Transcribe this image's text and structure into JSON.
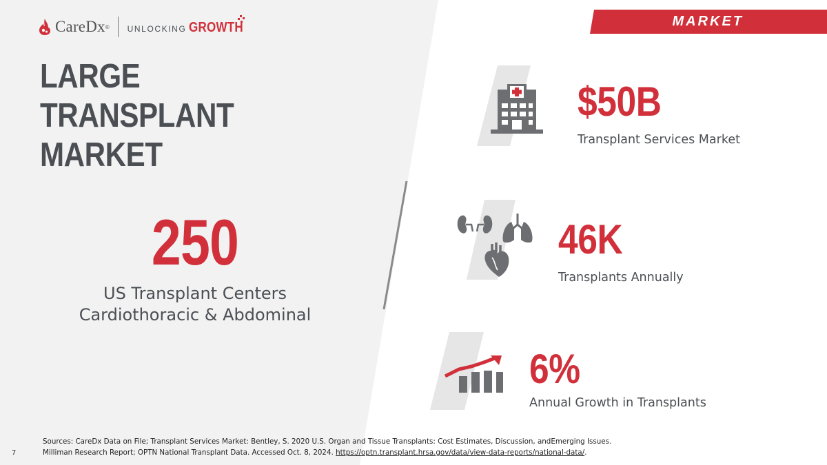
{
  "brand": {
    "logo_text": "CareDx",
    "logo_mark": "®",
    "tagline_prefix": "UNLOCKING",
    "tagline_highlight": "GROWTH"
  },
  "section_label": "MARKET",
  "title_line1": "LARGE TRANSPLANT",
  "title_line2": "MARKET",
  "centers": {
    "value": "250",
    "desc_line1": "US Transplant Centers",
    "desc_line2": "Cardiothoracic & Abdominal"
  },
  "stats": [
    {
      "value": "$50B",
      "label": "Transplant Services Market",
      "icon": "hospital-icon"
    },
    {
      "value": "46K",
      "label": "Transplants Annually",
      "icon": "organs-icon"
    },
    {
      "value": "6%",
      "label": "Annual Growth in Transplants",
      "icon": "growth-chart-icon"
    }
  ],
  "footer": {
    "sources_line1": "Sources: CareDx Data on File; Transplant Services Market: Bentley, S. 2020 U.S. Organ and Tissue Transplants: Cost Estimates, Discussion, andEmerging Issues.",
    "sources_line2_prefix": "Milliman Research Report; OPTN National Transplant Data. Accessed Oct. 8, 2024. ",
    "sources_link": "https://optn.transplant.hrsa.gov/data/view-data-reports/national-data/",
    "sources_line2_suffix": ".",
    "page_number": "7"
  },
  "colors": {
    "accent": "#d1303a",
    "text_dark": "#4b4f54",
    "panel_gray": "#f2f2f2",
    "icon_gray": "#6d6e71"
  }
}
